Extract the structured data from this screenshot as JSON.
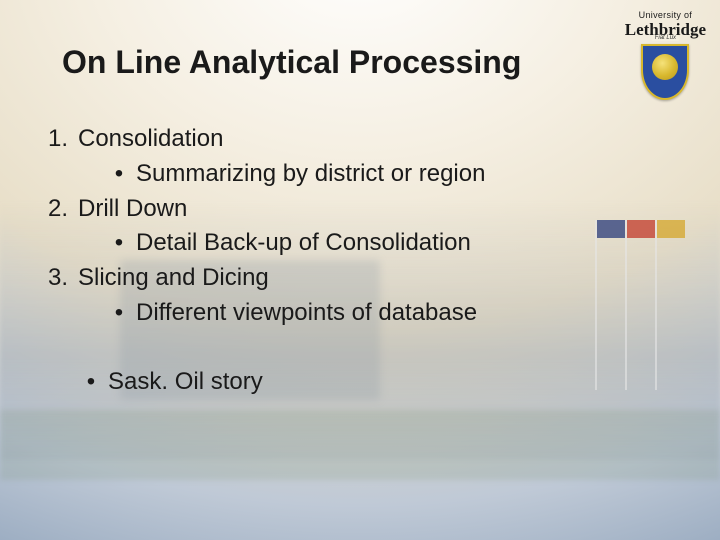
{
  "slide": {
    "title": "On Line Analytical Processing",
    "title_fontsize": 32,
    "body_fontsize": 24,
    "text_color": "#1a1a1a",
    "items": [
      {
        "num": "1.",
        "text": "Consolidation",
        "sub": {
          "bullet": "•",
          "text": "Summarizing by district or region"
        }
      },
      {
        "num": "2.",
        "text": "Drill Down",
        "sub": {
          "bullet": "•",
          "text": "Detail Back-up of Consolidation"
        }
      },
      {
        "num": "3.",
        "text": "Slicing and Dicing",
        "sub": {
          "bullet": "•",
          "text": "Different viewpoints of database"
        }
      }
    ],
    "extra": {
      "bullet": "•",
      "text": "Sask. Oil story"
    }
  },
  "logo": {
    "line1": "University of",
    "line2": "Lethbridge",
    "motto": "Fiat Lux",
    "crest_bg": "#2a4ea0",
    "crest_accent": "#d8b82e"
  },
  "background": {
    "gradient_inner": "#ffffff",
    "gradient_mid": "#e8dfc9",
    "gradient_outer": "#8ea2ba",
    "flag_colors": [
      "#2a3b7a",
      "#c23a2a",
      "#d4a62a"
    ]
  }
}
